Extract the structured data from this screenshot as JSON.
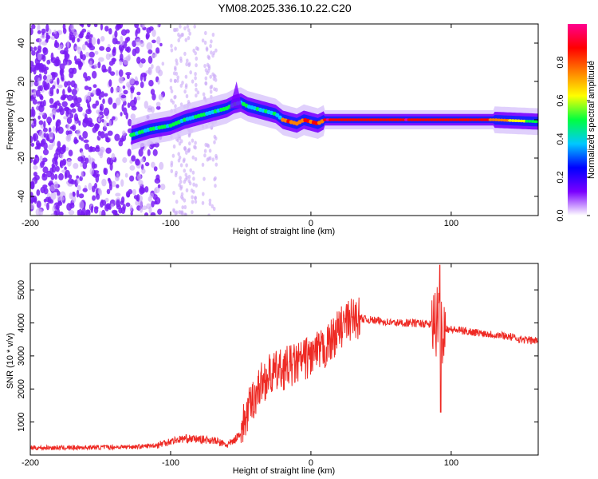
{
  "title": "YM08.2025.336.10.22.C20",
  "chart_data": [
    {
      "type": "heatmap",
      "name": "spectrogram",
      "xlabel": "Height of straight line (km)",
      "ylabel": "Frequency (Hz)",
      "xlim": [
        -200,
        162
      ],
      "ylim": [
        -50,
        50
      ],
      "xticks": [
        -200,
        -100,
        0,
        100
      ],
      "yticks": [
        -40,
        -20,
        0,
        20,
        40
      ],
      "ridge": {
        "x": [
          -128,
          -115,
          -100,
          -90,
          -80,
          -70,
          -60,
          -55,
          -50,
          -45,
          -40,
          -35,
          -30,
          -25,
          -20,
          -15,
          -10,
          -5,
          0,
          5,
          10,
          20,
          40,
          80,
          100,
          130,
          162
        ],
        "y": [
          -8,
          -5,
          -3,
          0,
          2,
          4,
          6,
          8,
          9,
          7,
          6,
          5,
          4,
          3,
          0,
          -1,
          -2,
          0,
          -1,
          -2,
          0,
          0,
          0,
          0,
          0,
          0,
          -1
        ]
      },
      "colorbar": {
        "label": "Normalized spectral amplitude",
        "ticks": [
          0.0,
          0.2,
          0.4,
          0.6,
          0.8
        ],
        "colors": [
          "#ffffff",
          "#7a00ff",
          "#0000ff",
          "#00c8ff",
          "#00ff40",
          "#ffff00",
          "#ff8000",
          "#ff0000",
          "#ff0090"
        ]
      }
    },
    {
      "type": "line",
      "name": "snr",
      "xlabel": "Height of straight line (km)",
      "ylabel": "SNR (10 * v/v)",
      "xlim": [
        -200,
        162
      ],
      "ylim": [
        0,
        5800
      ],
      "xticks": [
        -200,
        -100,
        0,
        100
      ],
      "yticks": [
        1000,
        2000,
        3000,
        4000,
        5000
      ],
      "series": [
        {
          "name": "SNR",
          "color": "#ee2a24",
          "x": [
            -200,
            -180,
            -160,
            -140,
            -120,
            -110,
            -100,
            -90,
            -80,
            -70,
            -60,
            -55,
            -50,
            -45,
            -40,
            -35,
            -30,
            -25,
            -20,
            -15,
            -10,
            -5,
            0,
            5,
            10,
            15,
            20,
            25,
            30,
            35,
            40,
            50,
            60,
            70,
            80,
            85,
            90,
            92,
            95,
            100,
            110,
            120,
            130,
            140,
            150,
            162
          ],
          "y": [
            220,
            220,
            230,
            240,
            260,
            300,
            420,
            500,
            480,
            450,
            300,
            420,
            700,
            1300,
            1800,
            2200,
            2400,
            2500,
            2600,
            2700,
            2750,
            2900,
            3000,
            3100,
            3200,
            3500,
            3800,
            4000,
            4150,
            4150,
            4100,
            4050,
            4000,
            4000,
            3980,
            3950,
            4000,
            3900,
            3850,
            3800,
            3750,
            3700,
            3650,
            3600,
            3500,
            3450
          ]
        }
      ]
    }
  ]
}
